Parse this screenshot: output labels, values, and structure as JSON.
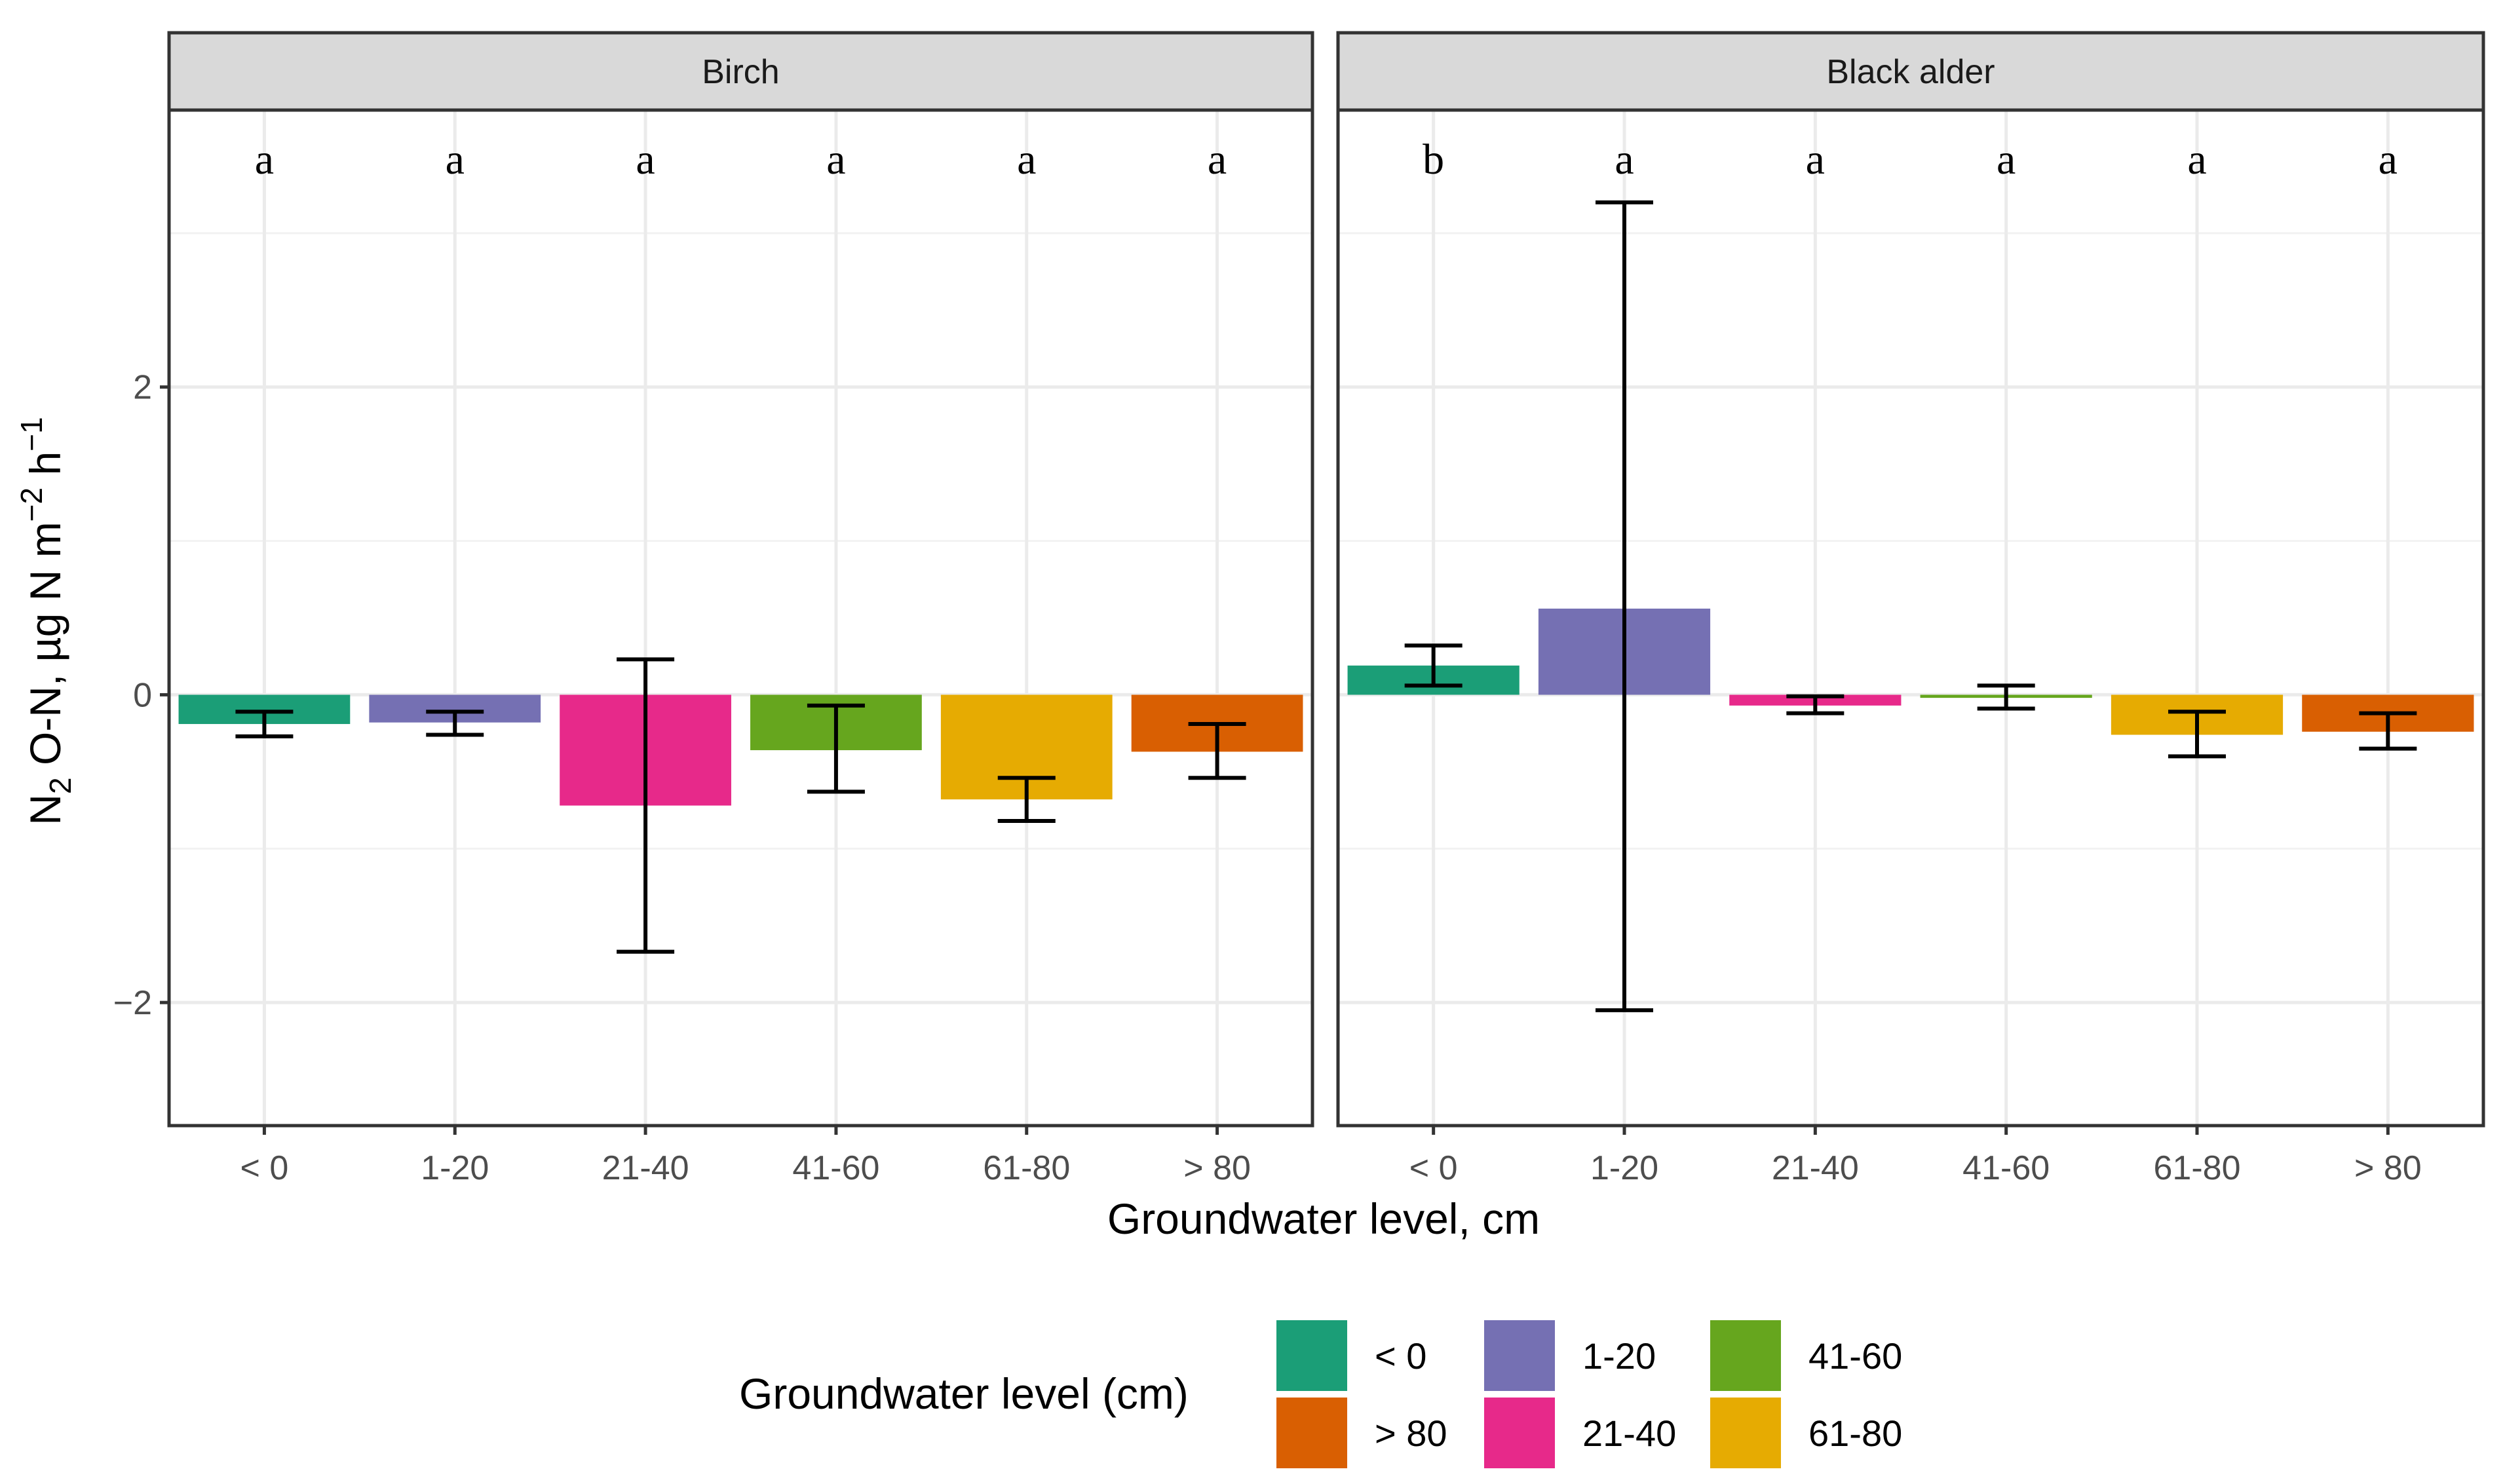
{
  "chart_data": {
    "type": "bar",
    "ylabel": {
      "main": "N",
      "sub": "2",
      "rest": " O-N, µg N m",
      "sup1": "−2",
      "mid": " h",
      "sup2": "−1"
    },
    "xlabel": "Groundwater level, cm",
    "categories": [
      "< 0",
      "1-20",
      "21-40",
      "41-60",
      "61-80",
      "> 80"
    ],
    "ylim": [
      -2.8,
      3.8
    ],
    "yticks": [
      -2,
      0,
      2
    ],
    "ytick_labels": [
      "−2",
      "0",
      "2"
    ],
    "grid": true,
    "colors": [
      "#1b9e77",
      "#7570b3",
      "#e7298a",
      "#66a61e",
      "#e6ab02",
      "#d95f02"
    ],
    "panels": [
      {
        "name": "Birch",
        "values": [
          -0.19,
          -0.18,
          -0.72,
          -0.36,
          -0.68,
          -0.37
        ],
        "err_low": [
          -0.27,
          -0.26,
          -1.67,
          -0.63,
          -0.82,
          -0.54
        ],
        "err_high": [
          -0.11,
          -0.11,
          0.23,
          -0.07,
          -0.54,
          -0.19
        ],
        "letters": [
          "a",
          "a",
          "a",
          "a",
          "a",
          "a"
        ]
      },
      {
        "name": "Black alder",
        "values": [
          0.19,
          0.56,
          -0.07,
          -0.02,
          -0.26,
          -0.24
        ],
        "err_low": [
          0.06,
          -2.05,
          -0.12,
          -0.09,
          -0.4,
          -0.35
        ],
        "err_high": [
          0.32,
          3.2,
          -0.01,
          0.06,
          -0.11,
          -0.12
        ],
        "letters": [
          "b",
          "a",
          "a",
          "a",
          "a",
          "a"
        ]
      }
    ],
    "legend": {
      "title": "Groundwater level (cm)",
      "position": "bottom",
      "items": [
        {
          "label": "< 0",
          "color": "#1b9e77"
        },
        {
          "label": "1-20",
          "color": "#7570b3"
        },
        {
          "label": "41-60",
          "color": "#66a61e"
        },
        {
          "label": "> 80",
          "color": "#d95f02"
        },
        {
          "label": "21-40",
          "color": "#e7298a"
        },
        {
          "label": "61-80",
          "color": "#e6ab02"
        }
      ]
    }
  }
}
